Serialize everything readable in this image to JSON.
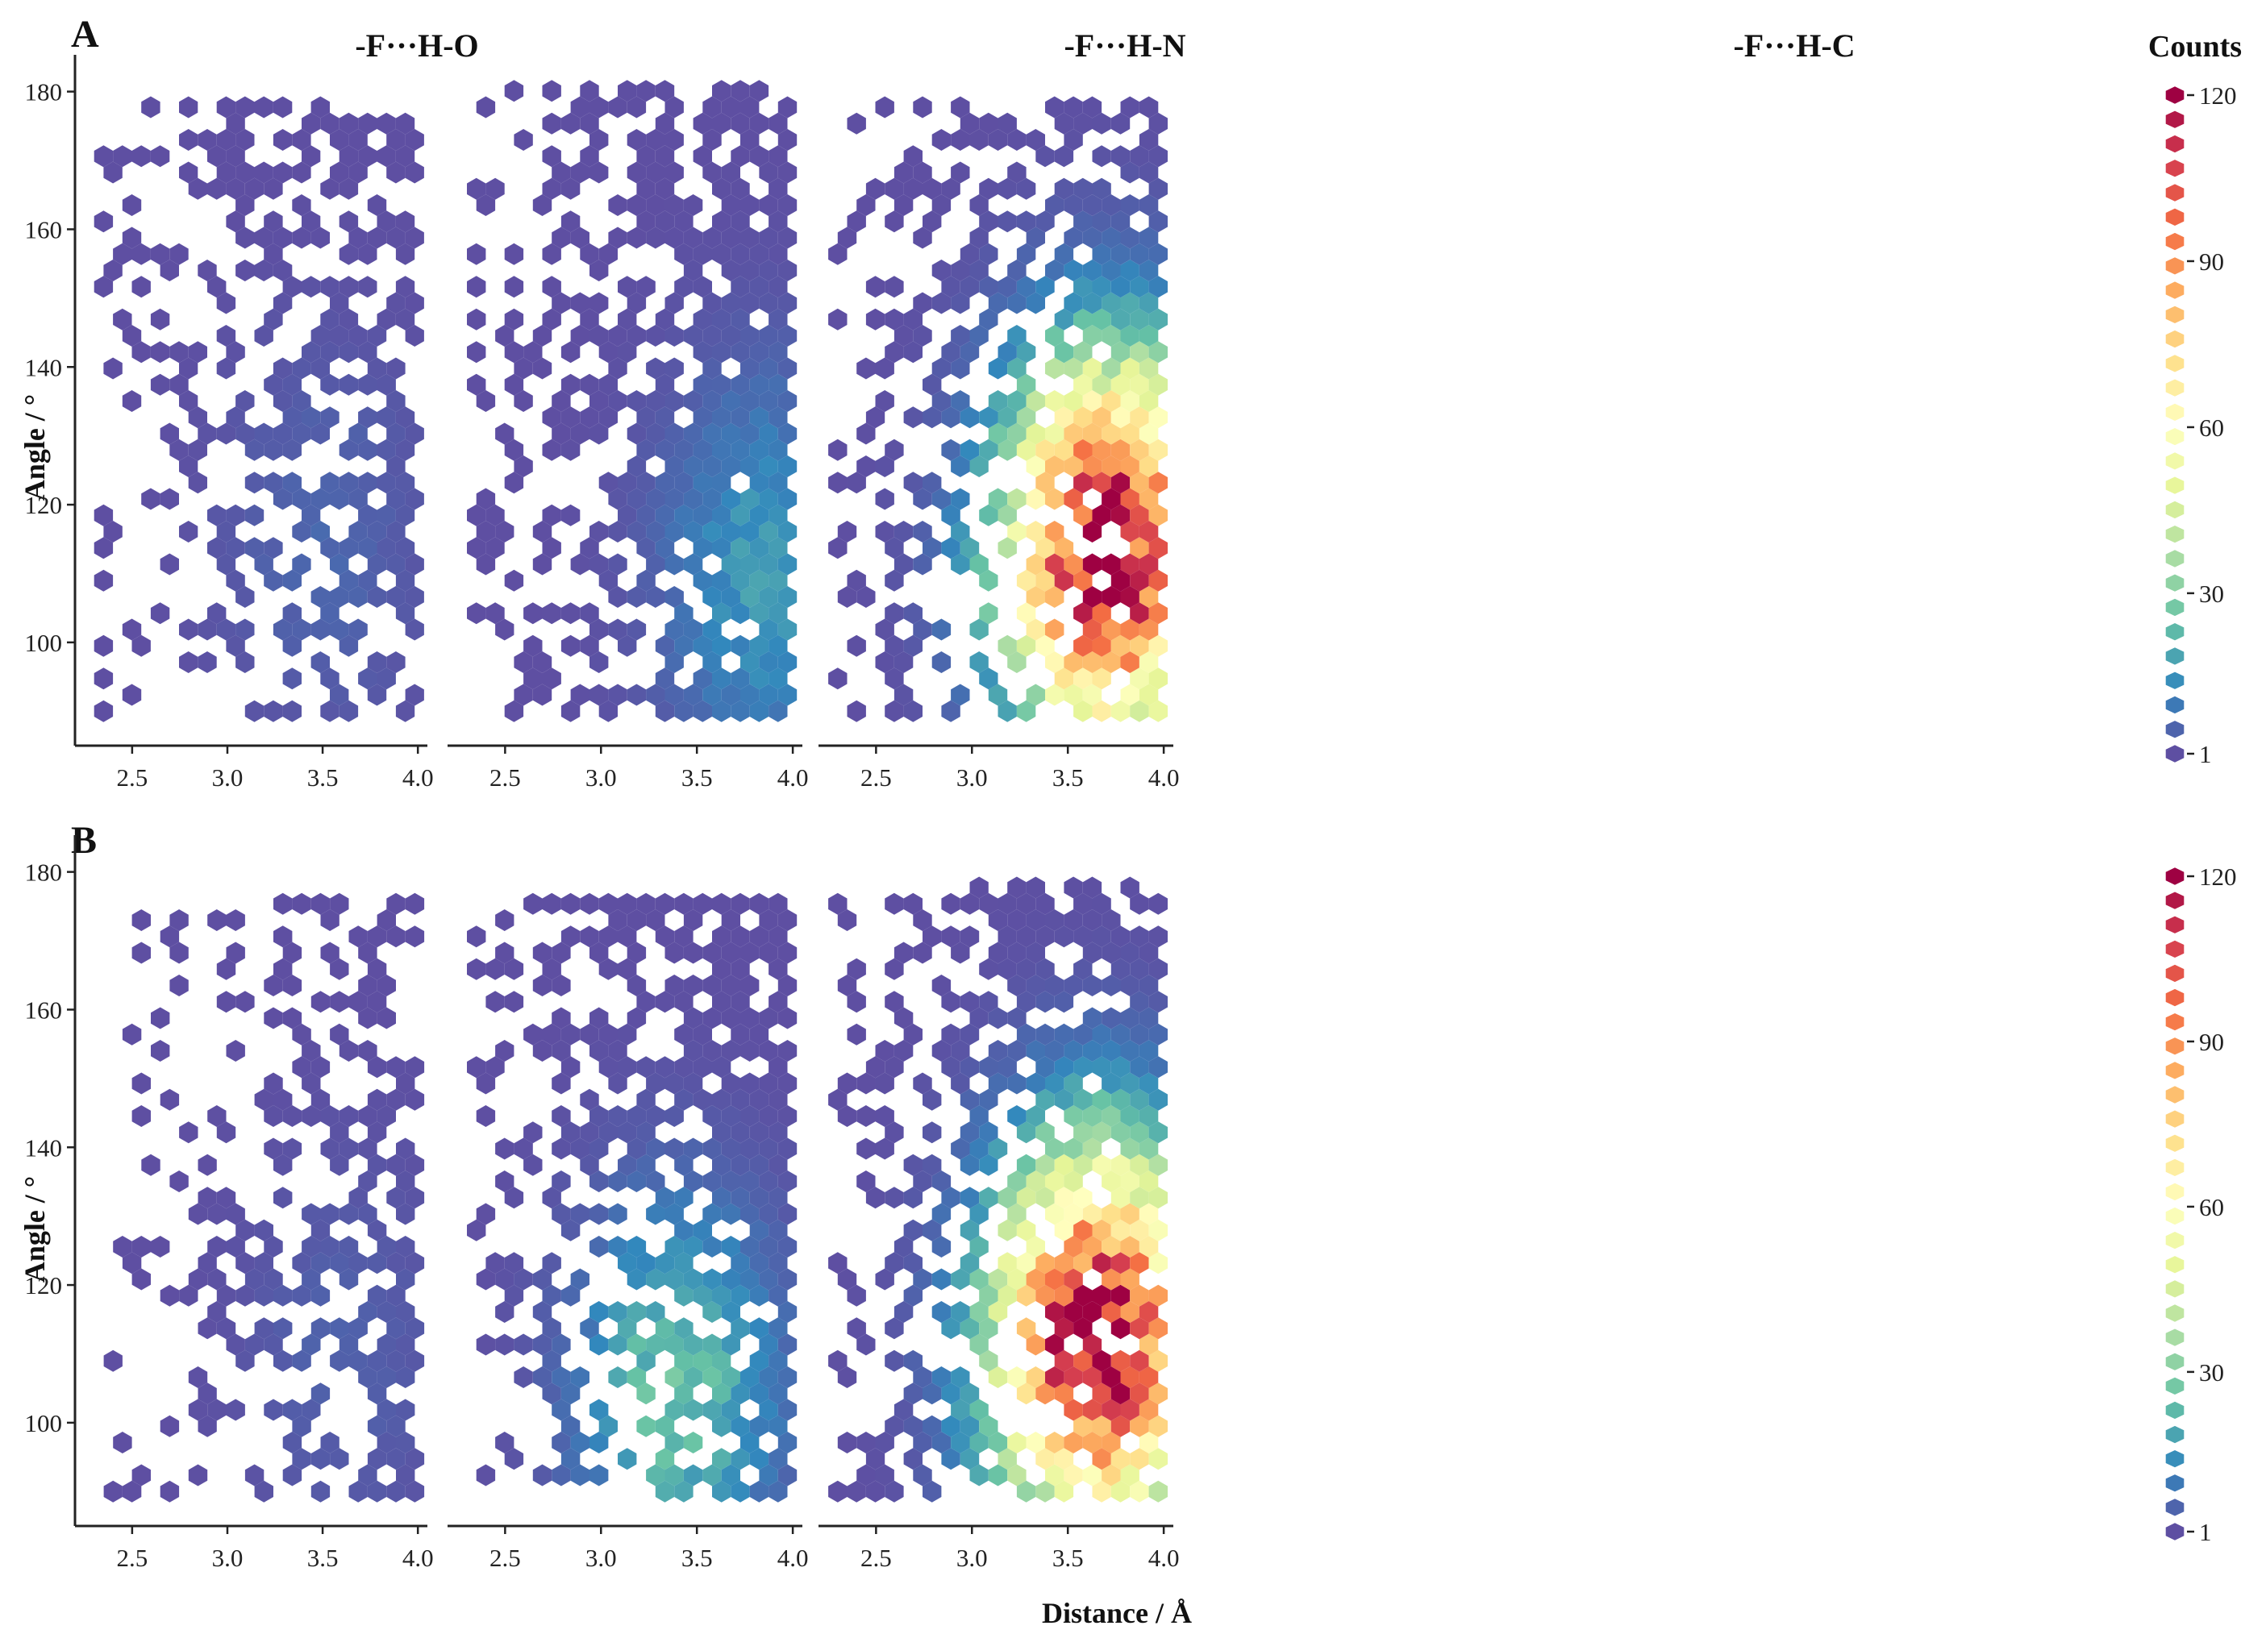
{
  "figure": {
    "panel_labels": [
      "A",
      "B"
    ],
    "x_axis_title": "Distance  / Å",
    "y_axis_title": "Angle / °",
    "colorbar_title": "Counts",
    "colorbar_ticks": [
      "120",
      "90",
      "60",
      "30",
      "1"
    ],
    "colors": {
      "low": "#5e4fa2",
      "scale": [
        "#5e4fa2",
        "#3288bd",
        "#66c2a5",
        "#abdda4",
        "#e6f598",
        "#ffffbf",
        "#fee08b",
        "#fdae61",
        "#f46d43",
        "#d53e4f",
        "#9e0142"
      ]
    }
  },
  "chart_data": [
    {
      "type": "hexbin",
      "row": "A",
      "title": "-F···H-O",
      "xlabel": "",
      "ylabel": "Angle / °",
      "xlim": [
        2.2,
        4.05
      ],
      "ylim": [
        85,
        183
      ],
      "xticks": [
        "2.5",
        "3.0",
        "3.5",
        "4.0"
      ],
      "yticks": [
        "100",
        "120",
        "140",
        "160",
        "180"
      ],
      "count_range": [
        1,
        120
      ],
      "density": {
        "x_range": [
          2.35,
          4.0
        ],
        "y_range": [
          90,
          178
        ],
        "fill": 0.55,
        "peak_count": 5,
        "peak_x": 3.5,
        "peak_y": 115
      }
    },
    {
      "type": "hexbin",
      "row": "A",
      "title": "-F···H-N",
      "xlabel": "",
      "ylabel": "",
      "xlim": [
        2.2,
        4.05
      ],
      "ylim": [
        85,
        183
      ],
      "xticks": [
        "2.5",
        "3.0",
        "3.5",
        "4.0"
      ],
      "yticks": [],
      "count_range": [
        1,
        120
      ],
      "density": {
        "x_range": [
          2.35,
          4.0
        ],
        "y_range": [
          90,
          180
        ],
        "fill": 0.82,
        "peak_count": 16,
        "peak_x": 3.85,
        "peak_y": 110
      }
    },
    {
      "type": "hexbin",
      "row": "A",
      "title": "-F···H-C",
      "xlabel": "",
      "ylabel": "",
      "xlim": [
        2.2,
        4.05
      ],
      "ylim": [
        85,
        183
      ],
      "xticks": [
        "2.5",
        "3.0",
        "3.5",
        "4.0"
      ],
      "yticks": [],
      "count_range": [
        1,
        120
      ],
      "density": {
        "x_range": [
          2.3,
          4.0
        ],
        "y_range": [
          90,
          178
        ],
        "fill": 0.8,
        "peak_count": 120,
        "peak_x": 3.7,
        "peak_y": 113
      }
    },
    {
      "type": "hexbin",
      "row": "B",
      "title": "",
      "xlabel": "",
      "ylabel": "Angle / °",
      "xlim": [
        2.2,
        4.05
      ],
      "ylim": [
        85,
        183
      ],
      "xticks": [
        "2.5",
        "3.0",
        "3.5",
        "4.0"
      ],
      "yticks": [
        "100",
        "120",
        "140",
        "160",
        "180"
      ],
      "count_range": [
        1,
        120
      ],
      "density": {
        "x_range": [
          2.4,
          4.0
        ],
        "y_range": [
          90,
          176
        ],
        "fill": 0.5,
        "peak_count": 4,
        "peak_x": 3.6,
        "peak_y": 110
      }
    },
    {
      "type": "hexbin",
      "row": "B",
      "title": "",
      "xlabel": "Distance  / Å",
      "ylabel": "",
      "xlim": [
        2.2,
        4.05
      ],
      "ylim": [
        85,
        183
      ],
      "xticks": [
        "2.5",
        "3.0",
        "3.5",
        "4.0"
      ],
      "yticks": [],
      "count_range": [
        1,
        120
      ],
      "density": {
        "x_range": [
          2.35,
          4.0
        ],
        "y_range": [
          90,
          177
        ],
        "fill": 0.8,
        "peak_count": 25,
        "peak_x": 3.4,
        "peak_y": 105
      }
    },
    {
      "type": "hexbin",
      "row": "B",
      "title": "",
      "xlabel": "",
      "ylabel": "",
      "xlim": [
        2.2,
        4.05
      ],
      "ylim": [
        85,
        183
      ],
      "xticks": [
        "2.5",
        "3.0",
        "3.5",
        "4.0"
      ],
      "yticks": [],
      "count_range": [
        1,
        120
      ],
      "density": {
        "x_range": [
          2.3,
          4.0
        ],
        "y_range": [
          90,
          178
        ],
        "fill": 0.8,
        "peak_count": 120,
        "peak_x": 3.65,
        "peak_y": 112
      }
    }
  ]
}
